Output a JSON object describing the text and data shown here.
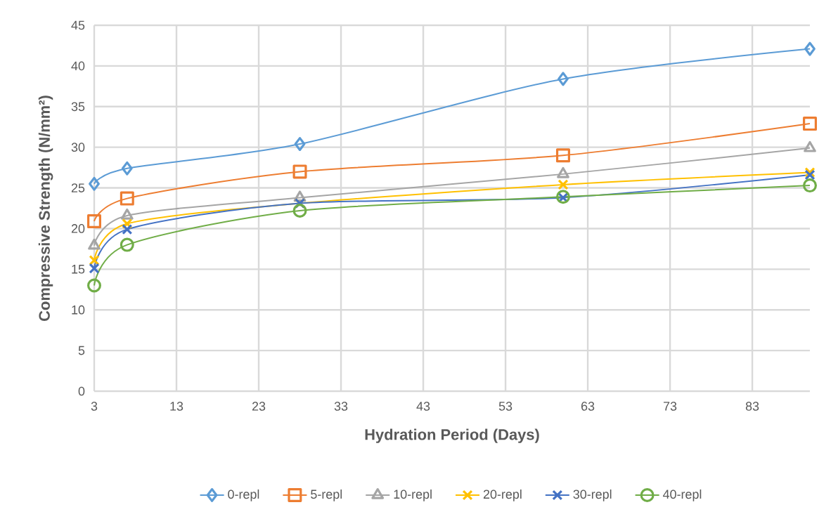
{
  "chart_data": {
    "type": "line",
    "xlabel": "Hydration Period (Days)",
    "ylabel": "Compressive Strength (N/mm²)",
    "x": [
      3,
      7,
      28,
      60,
      90
    ],
    "series": [
      {
        "name": "0-repl",
        "color": "#5b9bd5",
        "marker": "diamond",
        "values": [
          25.5,
          27.4,
          30.4,
          38.4,
          42.1
        ]
      },
      {
        "name": "5-repl",
        "color": "#ed7d31",
        "marker": "square",
        "values": [
          20.9,
          23.7,
          27.0,
          29.0,
          32.9
        ]
      },
      {
        "name": "10-repl",
        "color": "#a5a5a5",
        "marker": "triangle",
        "values": [
          17.9,
          21.6,
          23.8,
          26.7,
          29.9
        ]
      },
      {
        "name": "20-repl",
        "color": "#ffc000",
        "marker": "cross",
        "values": [
          16.1,
          20.6,
          23.1,
          25.4,
          26.9
        ]
      },
      {
        "name": "30-repl",
        "color": "#4472c4",
        "marker": "cross",
        "values": [
          15.1,
          19.9,
          23.1,
          23.8,
          26.6
        ]
      },
      {
        "name": "40-repl",
        "color": "#70ad47",
        "marker": "circle",
        "values": [
          13.0,
          18.0,
          22.2,
          23.9,
          25.3
        ]
      }
    ],
    "xlim": [
      3,
      90
    ],
    "xticks": [
      3,
      13,
      23,
      33,
      43,
      53,
      63,
      73,
      83
    ],
    "ylim": [
      0,
      45
    ],
    "yticks": [
      0,
      5,
      10,
      15,
      20,
      25,
      30,
      35,
      40,
      45
    ],
    "grid": true,
    "legend": "bottom",
    "line_style": "solid"
  }
}
